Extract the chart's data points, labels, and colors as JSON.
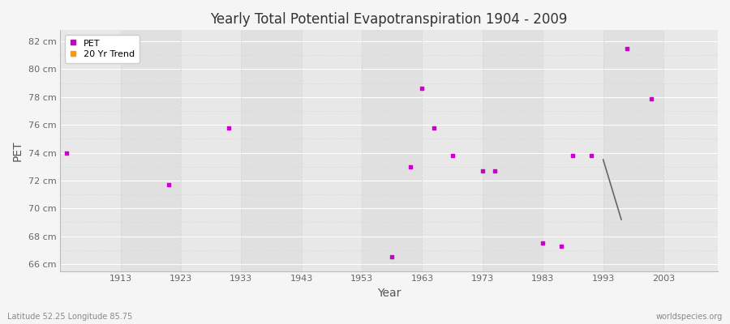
{
  "title": "Yearly Total Potential Evapotranspiration 1904 - 2009",
  "xlabel": "Year",
  "ylabel": "PET",
  "subtitle_left": "Latitude 52.25 Longitude 85.75",
  "subtitle_right": "worldspecies.org",
  "background_color": "#f5f5f5",
  "plot_background_color": "#ebebeb",
  "pet_color": "#cc00cc",
  "trend_line_color": "#666666",
  "ylim": [
    65.5,
    82.8
  ],
  "xlim": [
    1903,
    2012
  ],
  "yticks": [
    66,
    68,
    70,
    72,
    74,
    76,
    78,
    80,
    82
  ],
  "ytick_labels": [
    "66 cm",
    "68 cm",
    "70 cm",
    "72 cm",
    "74 cm",
    "76 cm",
    "78 cm",
    "80 cm",
    "82 cm"
  ],
  "xticks": [
    1913,
    1923,
    1933,
    1943,
    1953,
    1963,
    1973,
    1983,
    1993,
    2003
  ],
  "pet_years": [
    1904,
    1921,
    1931,
    1958,
    1961,
    1963,
    1965,
    1968,
    1973,
    1975,
    1983,
    1986,
    1988,
    1991,
    1997,
    2001
  ],
  "pet_values": [
    74.0,
    71.7,
    75.8,
    66.5,
    73.0,
    78.6,
    75.8,
    73.8,
    72.7,
    72.7,
    67.5,
    67.3,
    73.8,
    73.8,
    81.5,
    77.9
  ],
  "trend_years": [
    1993,
    1996
  ],
  "trend_values": [
    73.5,
    69.2
  ],
  "legend_pet_color": "#cc00cc",
  "legend_trend_color": "#ff9900",
  "grid_major_color": "#ffffff",
  "grid_minor_color": "#d8d8d8",
  "band_colors": [
    "#e8e8e8",
    "#e0e0e0"
  ]
}
